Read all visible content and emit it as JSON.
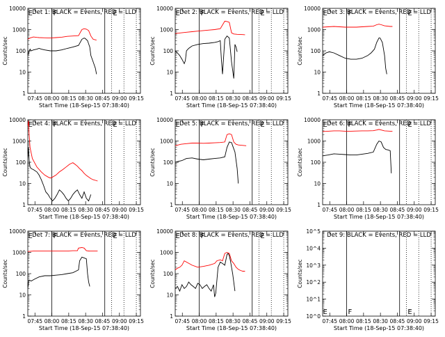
{
  "chart_data": {
    "type": "line",
    "shared": {
      "x_ticks": [
        "07:45",
        "08:00",
        "08:15",
        "08:30",
        "08:45",
        "09:00",
        "09:15"
      ],
      "xlabel": "Start Time (18-Sep-15 07:38:40)",
      "ylabel": "Counts/sec",
      "xlim_minutes": [
        0,
        100
      ],
      "y_scale": "log",
      "ylim": [
        1,
        10000
      ],
      "y_ticks": [
        "1",
        "10",
        "100",
        "1000",
        "10000"
      ],
      "ylim_empty": [
        1,
        100000
      ],
      "y_ticks_empty": [
        "10^0",
        "10^1",
        "10^2",
        "10^3",
        "10^4",
        "10^5"
      ],
      "colors": {
        "events": "#000000",
        "lld": "#ff0000",
        "axes": "#000000"
      },
      "v_lines_solid": [
        "08:00",
        "08:47"
      ],
      "v_lines_dotted": [
        "08:53",
        "09:04",
        "09:15"
      ],
      "marker_labels": {
        "f": "F",
        "e": "E"
      }
    },
    "panels": [
      {
        "title": "Det 1: BLACK = Events, RED = LLD",
        "series": [
          {
            "name": "Events",
            "x": [
              0,
              1,
              2,
              3,
              5,
              8,
              10,
              12,
              15,
              20,
              25,
              30,
              35,
              40,
              45,
              48,
              50,
              51,
              53,
              55,
              56,
              58,
              60,
              61
            ],
            "y": [
              60,
              90,
              120,
              100,
              110,
              120,
              130,
              120,
              110,
              100,
              100,
              110,
              130,
              150,
              180,
              350,
              400,
              380,
              300,
              150,
              60,
              30,
              15,
              8
            ]
          },
          {
            "name": "LLD",
            "x": [
              0,
              2,
              5,
              8,
              10,
              15,
              20,
              25,
              30,
              35,
              40,
              45,
              48,
              50,
              52,
              54,
              56,
              58,
              60,
              61
            ],
            "y": [
              350,
              400,
              450,
              430,
              420,
              410,
              400,
              420,
              440,
              480,
              500,
              520,
              1000,
              1100,
              1050,
              900,
              500,
              350,
              330,
              320
            ]
          }
        ]
      },
      {
        "title": "Det 2: BLACK = Events, RED = LLD",
        "series": [
          {
            "name": "Events",
            "x": [
              0,
              2,
              4,
              6,
              8,
              9,
              10,
              12,
              15,
              20,
              25,
              30,
              35,
              38,
              40,
              41,
              42,
              44,
              46,
              48,
              50,
              52,
              53,
              54,
              55
            ],
            "y": [
              100,
              80,
              60,
              40,
              25,
              35,
              100,
              130,
              170,
              200,
              220,
              230,
              250,
              270,
              300,
              40,
              8,
              350,
              500,
              400,
              30,
              5,
              200,
              150,
              90
            ]
          },
          {
            "name": "LLD",
            "x": [
              0,
              5,
              10,
              15,
              20,
              25,
              30,
              35,
              40,
              44,
              46,
              48,
              50,
              52,
              55,
              60,
              62
            ],
            "y": [
              650,
              700,
              750,
              800,
              850,
              900,
              950,
              1000,
              1100,
              2500,
              2400,
              2200,
              700,
              620,
              600,
              580,
              570
            ]
          }
        ]
      },
      {
        "title": "Det 3: BLACK = Events, RED = LLD",
        "series": [
          {
            "name": "Events",
            "x": [
              0,
              3,
              6,
              10,
              15,
              20,
              25,
              30,
              35,
              40,
              43,
              46,
              48,
              50,
              51,
              53,
              55,
              56,
              57
            ],
            "y": [
              60,
              80,
              90,
              80,
              60,
              45,
              40,
              40,
              45,
              60,
              80,
              120,
              250,
              400,
              400,
              250,
              60,
              15,
              8
            ]
          },
          {
            "name": "LLD",
            "x": [
              0,
              5,
              10,
              15,
              20,
              25,
              30,
              35,
              40,
              45,
              48,
              50,
              52,
              55,
              60,
              62
            ],
            "y": [
              1300,
              1350,
              1400,
              1350,
              1300,
              1300,
              1300,
              1350,
              1400,
              1450,
              1700,
              1800,
              1700,
              1500,
              1400,
              1400
            ]
          }
        ]
      },
      {
        "title": "Det 4: BLACK = Events, RED = LLD",
        "series": [
          {
            "name": "Events",
            "x": [
              0,
              0.6,
              1.2,
              2,
              3,
              5,
              8,
              10,
              12,
              14,
              16,
              18,
              20,
              22,
              24,
              26,
              28,
              30,
              32,
              34,
              36,
              38,
              40,
              42,
              44,
              46,
              48,
              50,
              52,
              54,
              56
            ],
            "y": [
              150,
              500,
              120,
              60,
              50,
              45,
              35,
              25,
              15,
              8,
              4,
              3,
              2,
              1.5,
              2,
              3,
              5,
              4,
              3,
              2,
              1.5,
              2,
              3,
              4,
              5,
              3,
              2,
              4,
              2,
              1.5,
              3
            ]
          },
          {
            "name": "LLD",
            "x": [
              0,
              0.6,
              1.2,
              2,
              4,
              8,
              12,
              15,
              18,
              20,
              22,
              25,
              28,
              31,
              34,
              37,
              39,
              40,
              42,
              44,
              46,
              48,
              50,
              52,
              54,
              56,
              58,
              60,
              62
            ],
            "y": [
              5000,
              9000,
              2000,
              500,
              150,
              60,
              35,
              25,
              20,
              18,
              20,
              25,
              35,
              45,
              60,
              80,
              90,
              95,
              80,
              65,
              50,
              40,
              30,
              24,
              20,
              17,
              15,
              14,
              13
            ]
          }
        ]
      },
      {
        "title": "Det 5: BLACK = Events, RED = LLD",
        "series": [
          {
            "name": "Events",
            "x": [
              0,
              3,
              6,
              10,
              15,
              20,
              25,
              30,
              35,
              40,
              44,
              46,
              48,
              50,
              51,
              53,
              55,
              56
            ],
            "y": [
              100,
              110,
              120,
              150,
              160,
              140,
              130,
              140,
              150,
              160,
              180,
              500,
              900,
              850,
              600,
              300,
              50,
              10
            ]
          },
          {
            "name": "LLD",
            "x": [
              0,
              5,
              10,
              15,
              20,
              25,
              30,
              35,
              40,
              44,
              46,
              48,
              50,
              52,
              54,
              56,
              60,
              63
            ],
            "y": [
              600,
              700,
              750,
              800,
              800,
              780,
              800,
              820,
              850,
              900,
              2000,
              2200,
              2000,
              900,
              700,
              650,
              620,
              600
            ]
          }
        ]
      },
      {
        "title": "Det 6: BLACK = Events, RED = LLD",
        "series": [
          {
            "name": "Events",
            "x": [
              0,
              5,
              10,
              15,
              20,
              25,
              30,
              35,
              40,
              45,
              48,
              50,
              52,
              54,
              56,
              58,
              60,
              61
            ],
            "y": [
              200,
              220,
              250,
              240,
              230,
              220,
              220,
              240,
              260,
              300,
              700,
              1000,
              900,
              500,
              400,
              380,
              350,
              30
            ]
          },
          {
            "name": "LLD",
            "x": [
              0,
              5,
              10,
              15,
              20,
              25,
              30,
              35,
              40,
              45,
              48,
              50,
              52,
              55,
              60,
              62
            ],
            "y": [
              2800,
              2900,
              3000,
              3000,
              2900,
              2900,
              2950,
              3000,
              3000,
              3050,
              3300,
              3500,
              3300,
              3000,
              2900,
              2900
            ]
          }
        ]
      },
      {
        "title": "Det 7: BLACK = Events, RED = LLD",
        "series": [
          {
            "name": "Events",
            "x": [
              0,
              1,
              3,
              6,
              10,
              15,
              20,
              25,
              30,
              35,
              40,
              45,
              46,
              48,
              50,
              52,
              53,
              54,
              55
            ],
            "y": [
              20,
              50,
              45,
              55,
              70,
              80,
              80,
              85,
              90,
              100,
              110,
              150,
              400,
              600,
              550,
              500,
              100,
              40,
              25
            ]
          },
          {
            "name": "LLD",
            "x": [
              0,
              5,
              10,
              15,
              20,
              25,
              30,
              35,
              40,
              44,
              45,
              48,
              50,
              52,
              55,
              60,
              62
            ],
            "y": [
              1100,
              1150,
              1150,
              1150,
              1150,
              1150,
              1150,
              1150,
              1200,
              1200,
              1600,
              1700,
              1600,
              1200,
              1150,
              1150,
              1150
            ]
          }
        ]
      },
      {
        "title": "Det 8: BLACK = Events, RED = LLD",
        "series": [
          {
            "name": "Events",
            "x": [
              0,
              2,
              4,
              6,
              8,
              10,
              12,
              14,
              16,
              18,
              20,
              22,
              24,
              26,
              28,
              30,
              32,
              34,
              35,
              36,
              38,
              40,
              42,
              44,
              46,
              47,
              48,
              49,
              50,
              51,
              52,
              53
            ],
            "y": [
              20,
              25,
              15,
              30,
              20,
              25,
              40,
              30,
              25,
              20,
              35,
              30,
              20,
              25,
              30,
              20,
              15,
              30,
              8,
              12,
              200,
              350,
              300,
              250,
              800,
              900,
              700,
              400,
              200,
              100,
              40,
              15
            ]
          },
          {
            "name": "LLD",
            "x": [
              0,
              2,
              4,
              6,
              8,
              10,
              15,
              20,
              25,
              30,
              35,
              37,
              40,
              42,
              44,
              46,
              48,
              50,
              52,
              54,
              56,
              58,
              60,
              62
            ],
            "y": [
              150,
              180,
              200,
              250,
              400,
              350,
              250,
              200,
              220,
              250,
              300,
              400,
              450,
              400,
              900,
              1000,
              900,
              400,
              300,
              200,
              160,
              140,
              130,
              130
            ]
          }
        ]
      },
      {
        "title": "Det 9: BLACK = Events, RED = LLD",
        "empty": true,
        "series": []
      }
    ]
  }
}
